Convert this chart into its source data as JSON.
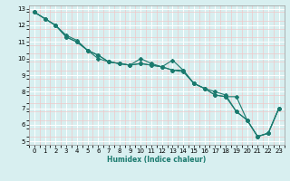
{
  "xlabel": "Humidex (Indice chaleur)",
  "ylabel": "",
  "bg_color": "#d8eff0",
  "grid_color_major": "#ffffff",
  "grid_color_minor": "#f0c8c8",
  "line_color": "#1a7a6e",
  "xlim": [
    -0.5,
    23.5
  ],
  "ylim": [
    4.8,
    13.2
  ],
  "xticks": [
    0,
    1,
    2,
    3,
    4,
    5,
    6,
    7,
    8,
    9,
    10,
    11,
    12,
    13,
    14,
    15,
    16,
    17,
    18,
    19,
    20,
    21,
    22,
    23
  ],
  "yticks": [
    5,
    6,
    7,
    8,
    9,
    10,
    11,
    12,
    13
  ],
  "series": [
    [
      12.8,
      12.4,
      12.0,
      11.3,
      11.0,
      10.5,
      10.2,
      9.8,
      9.7,
      9.6,
      9.7,
      9.6,
      9.5,
      9.3,
      9.3,
      8.5,
      8.2,
      7.8,
      7.7,
      7.7,
      6.3,
      5.3,
      5.5,
      7.0
    ],
    [
      12.8,
      12.4,
      12.0,
      11.3,
      11.0,
      10.5,
      10.2,
      9.8,
      9.7,
      9.6,
      10.0,
      9.7,
      9.5,
      9.9,
      9.3,
      8.5,
      8.2,
      8.0,
      7.8,
      6.8,
      6.3,
      5.3,
      5.5,
      7.0
    ],
    [
      12.8,
      12.4,
      12.0,
      11.4,
      11.1,
      10.5,
      10.0,
      9.8,
      9.7,
      9.6,
      9.7,
      9.6,
      9.5,
      9.3,
      9.2,
      8.5,
      8.2,
      7.8,
      7.7,
      6.8,
      6.3,
      5.3,
      5.5,
      7.0
    ]
  ]
}
